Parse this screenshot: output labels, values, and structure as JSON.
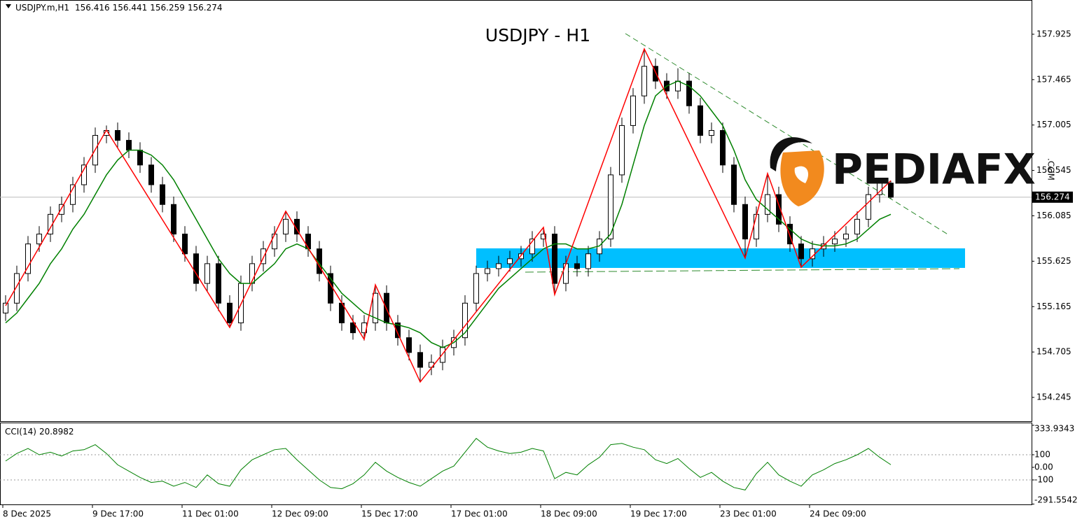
{
  "chart_data": [
    {
      "type": "candlestick",
      "title": "USDJPY - H1",
      "symbol": "USDJPY.m,H1",
      "categories": [
        "8 Dec 2025",
        null,
        null,
        null,
        null,
        null,
        null,
        null,
        "9 Dec 17:00",
        null,
        null,
        null,
        null,
        null,
        null,
        null,
        "11 Dec 01:00",
        null,
        null,
        null,
        null,
        null,
        null,
        null,
        "12 Dec 09:00",
        null,
        null,
        null,
        null,
        null,
        null,
        null,
        "15 Dec 17:00",
        null,
        null,
        null,
        null,
        null,
        null,
        null,
        "17 Dec 01:00",
        null,
        null,
        null,
        null,
        null,
        null,
        null,
        "18 Dec 09:00",
        null,
        null,
        null,
        null,
        null,
        null,
        null,
        "19 Dec 17:00",
        null,
        null,
        null,
        null,
        null,
        null,
        null,
        "23 Dec 01:00",
        null,
        null,
        null,
        null,
        null,
        null,
        null,
        "24 Dec 09:00",
        null,
        null,
        null,
        null,
        null,
        null,
        null
      ],
      "ohlc": [
        [
          155.1,
          155.28,
          155.02,
          155.2
        ],
        [
          155.2,
          155.58,
          155.12,
          155.5
        ],
        [
          155.5,
          155.88,
          155.42,
          155.8
        ],
        [
          155.8,
          155.98,
          155.72,
          155.9
        ],
        [
          155.9,
          156.18,
          155.82,
          156.1
        ],
        [
          156.1,
          156.28,
          156.02,
          156.2
        ],
        [
          156.2,
          156.48,
          156.12,
          156.4
        ],
        [
          156.4,
          156.68,
          156.32,
          156.6
        ],
        [
          156.6,
          156.98,
          156.52,
          156.9
        ],
        [
          156.9,
          157.0,
          156.82,
          156.95
        ],
        [
          156.95,
          157.03,
          156.77,
          156.85
        ],
        [
          156.85,
          156.93,
          156.67,
          156.75
        ],
        [
          156.75,
          156.83,
          156.52,
          156.6
        ],
        [
          156.6,
          156.68,
          156.32,
          156.4
        ],
        [
          156.4,
          156.48,
          156.12,
          156.2
        ],
        [
          156.2,
          156.28,
          155.82,
          155.9
        ],
        [
          155.9,
          155.98,
          155.62,
          155.7
        ],
        [
          155.7,
          155.78,
          155.32,
          155.4
        ],
        [
          155.4,
          155.68,
          155.32,
          155.6
        ],
        [
          155.6,
          155.68,
          155.12,
          155.2
        ],
        [
          155.2,
          155.28,
          154.95,
          155.0
        ],
        [
          155.0,
          155.48,
          154.92,
          155.4
        ],
        [
          155.4,
          155.68,
          155.32,
          155.6
        ],
        [
          155.6,
          155.83,
          155.52,
          155.75
        ],
        [
          155.75,
          155.98,
          155.67,
          155.9
        ],
        [
          155.9,
          156.13,
          155.82,
          156.05
        ],
        [
          156.05,
          156.13,
          155.82,
          155.9
        ],
        [
          155.9,
          155.98,
          155.67,
          155.75
        ],
        [
          155.75,
          155.83,
          155.42,
          155.5
        ],
        [
          155.5,
          155.58,
          155.12,
          155.2
        ],
        [
          155.2,
          155.28,
          154.92,
          155.0
        ],
        [
          155.0,
          155.08,
          154.83,
          154.9
        ],
        [
          154.9,
          155.08,
          154.82,
          155.0
        ],
        [
          155.0,
          155.39,
          154.92,
          155.3
        ],
        [
          155.3,
          155.38,
          154.92,
          155.0
        ],
        [
          155.0,
          155.08,
          154.77,
          154.85
        ],
        [
          154.85,
          154.93,
          154.62,
          154.7
        ],
        [
          154.7,
          154.78,
          154.4,
          154.55
        ],
        [
          154.55,
          154.68,
          154.47,
          154.6
        ],
        [
          154.6,
          154.83,
          154.52,
          154.75
        ],
        [
          154.75,
          154.93,
          154.67,
          154.85
        ],
        [
          154.85,
          155.28,
          154.77,
          155.2
        ],
        [
          155.2,
          155.58,
          155.12,
          155.5
        ],
        [
          155.5,
          155.63,
          155.42,
          155.55
        ],
        [
          155.55,
          155.68,
          155.47,
          155.6
        ],
        [
          155.6,
          155.73,
          155.52,
          155.65
        ],
        [
          155.65,
          155.78,
          155.57,
          155.7
        ],
        [
          155.7,
          155.93,
          155.62,
          155.85
        ],
        [
          155.85,
          155.97,
          155.77,
          155.9
        ],
        [
          155.9,
          155.98,
          155.29,
          155.4
        ],
        [
          155.4,
          155.68,
          155.32,
          155.6
        ],
        [
          155.6,
          155.68,
          155.47,
          155.55
        ],
        [
          155.55,
          155.78,
          155.47,
          155.7
        ],
        [
          155.7,
          155.93,
          155.62,
          155.85
        ],
        [
          155.85,
          156.58,
          155.77,
          156.5
        ],
        [
          156.5,
          157.08,
          156.42,
          157.0
        ],
        [
          157.0,
          157.38,
          156.92,
          157.3
        ],
        [
          157.3,
          157.78,
          157.22,
          157.6
        ],
        [
          157.6,
          157.68,
          157.37,
          157.45
        ],
        [
          157.45,
          157.53,
          157.27,
          157.35
        ],
        [
          157.35,
          157.58,
          157.27,
          157.45
        ],
        [
          157.45,
          157.53,
          157.12,
          157.2
        ],
        [
          157.2,
          157.28,
          156.82,
          156.9
        ],
        [
          156.9,
          157.03,
          156.82,
          156.95
        ],
        [
          156.95,
          157.03,
          156.52,
          156.6
        ],
        [
          156.6,
          156.68,
          156.12,
          156.2
        ],
        [
          156.2,
          156.28,
          155.66,
          155.85
        ],
        [
          155.85,
          156.18,
          155.77,
          156.1
        ],
        [
          156.1,
          156.51,
          156.02,
          156.3
        ],
        [
          156.3,
          156.38,
          155.92,
          156.0
        ],
        [
          156.0,
          156.08,
          155.72,
          155.8
        ],
        [
          155.8,
          155.88,
          155.56,
          155.65
        ],
        [
          155.65,
          155.83,
          155.57,
          155.75
        ],
        [
          155.75,
          155.88,
          155.67,
          155.8
        ],
        [
          155.8,
          155.93,
          155.72,
          155.85
        ],
        [
          155.85,
          155.98,
          155.77,
          155.9
        ],
        [
          155.9,
          156.13,
          155.82,
          156.05
        ],
        [
          156.05,
          156.38,
          155.97,
          156.3
        ],
        [
          156.3,
          156.47,
          156.22,
          156.416
        ],
        [
          156.416,
          156.441,
          156.259,
          156.274
        ]
      ],
      "bull_color": "#ffffff",
      "bear_color": "#000000",
      "series": [
        {
          "color": "#008000",
          "values": [
            155.0,
            155.1,
            155.25,
            155.4,
            155.6,
            155.75,
            155.95,
            156.1,
            156.3,
            156.5,
            156.65,
            156.75,
            156.75,
            156.7,
            156.6,
            156.45,
            156.25,
            156.05,
            155.85,
            155.65,
            155.5,
            155.4,
            155.4,
            155.5,
            155.6,
            155.75,
            155.8,
            155.75,
            155.6,
            155.45,
            155.3,
            155.2,
            155.1,
            155.05,
            155.0,
            154.98,
            154.95,
            154.9,
            154.8,
            154.75,
            154.8,
            154.9,
            155.05,
            155.2,
            155.35,
            155.45,
            155.55,
            155.65,
            155.75,
            155.8,
            155.8,
            155.75,
            155.75,
            155.78,
            155.9,
            156.2,
            156.6,
            157.0,
            157.3,
            157.4,
            157.45,
            157.4,
            157.3,
            157.15,
            157.0,
            156.75,
            156.45,
            156.25,
            156.15,
            156.05,
            155.95,
            155.85,
            155.8,
            155.78,
            155.78,
            155.8,
            155.85,
            155.95,
            156.05,
            156.1
          ]
        },
        {
          "color": "#ff0000",
          "x": [
            0,
            9,
            20,
            25,
            32,
            33,
            37,
            48,
            49,
            57,
            66,
            68,
            71,
            79
          ],
          "values": [
            155.174,
            156.954,
            154.954,
            156.131,
            154.833,
            155.386,
            154.401,
            155.968,
            155.287,
            157.776,
            155.656,
            156.514,
            155.564,
            156.441
          ]
        }
      ],
      "zone": {
        "from": 155.557,
        "to": 155.755,
        "color": "#00bfff"
      },
      "ylim": [
        153.997,
        158.272
      ],
      "yticks": [
        157.925,
        157.465,
        157.005,
        156.545,
        156.085,
        155.625,
        155.165,
        154.705,
        154.245
      ],
      "watermark": {
        "brand": "PEDIAFX",
        "suffix": ".COM"
      }
    },
    {
      "type": "line",
      "title": "CCI(14)",
      "color": "#008000",
      "values": [
        50,
        110,
        150,
        100,
        120,
        90,
        130,
        140,
        180,
        110,
        20,
        -30,
        -80,
        -120,
        -110,
        -150,
        -120,
        -160,
        -60,
        -130,
        -150,
        -20,
        60,
        100,
        140,
        150,
        60,
        -20,
        -100,
        -160,
        -170,
        -130,
        -60,
        40,
        -30,
        -80,
        -120,
        -150,
        -90,
        -30,
        10,
        120,
        230,
        160,
        130,
        110,
        120,
        150,
        130,
        -90,
        -40,
        -60,
        20,
        80,
        180,
        190,
        160,
        140,
        60,
        30,
        70,
        -10,
        -80,
        -40,
        -110,
        -160,
        -180,
        -50,
        40,
        -60,
        -110,
        -150,
        -60,
        -20,
        30,
        60,
        100,
        150,
        80,
        20.8982
      ],
      "ylim": [
        -294.4,
        350
      ],
      "yticks": [
        333.9343,
        100,
        {
          "value": 0,
          "label": "0.00"
        },
        -100,
        -291.5542
      ],
      "levels": [
        100,
        -100
      ]
    }
  ]
}
